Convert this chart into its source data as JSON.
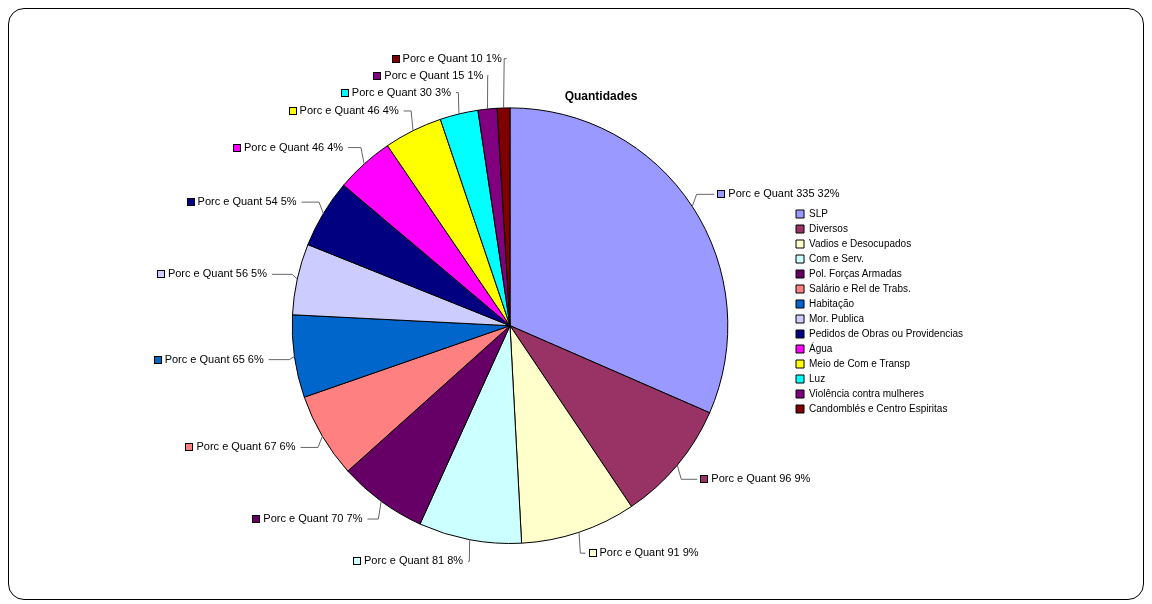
{
  "chart_data": {
    "type": "pie",
    "title": "Quantidades",
    "categories": [
      "SLP",
      "Diversos",
      "Vadios e Desocupados",
      "Com e Serv.",
      "Pol. Forças Armadas",
      "Salário e Rel de Trabs.",
      "Habitação",
      "Mor. Publica",
      "Pedidos de Obras ou Providencias",
      "Água",
      "Meio de Com e Transp",
      "Luz",
      "Violência contra mulheres",
      "Candomblés e Centro Espiritas"
    ],
    "values": [
      335,
      96,
      91,
      81,
      70,
      67,
      65,
      56,
      54,
      46,
      46,
      30,
      15,
      10
    ],
    "colors": [
      "#9999ff",
      "#993366",
      "#ffffcc",
      "#ccffff",
      "#660066",
      "#ff8080",
      "#0066cc",
      "#ccccff",
      "#000080",
      "#ff00ff",
      "#ffff00",
      "#00ffff",
      "#800080",
      "#800000"
    ],
    "value_labels": [
      "Porc e Quant 335 32%",
      "Porc e Quant 96 9%",
      "Porc e Quant 91 9%",
      "Porc e Quant 81 8%",
      "Porc e Quant 70 7%",
      "Porc e Quant 67 6%",
      "Porc e Quant 65 6%",
      "Porc e Quant 56 5%",
      "Porc e Quant 54 5%",
      "Porc e Quant 46 4%",
      "Porc e Quant 46 4%",
      "Porc e Quant 30 3%",
      "Porc e Quant 15 1%",
      "Porc e Quant 10 1%"
    ],
    "legend": "right"
  }
}
